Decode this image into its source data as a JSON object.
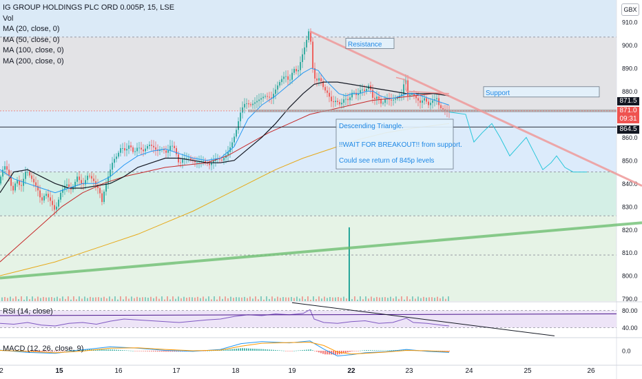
{
  "header": {
    "title": "IG GROUP HOLDINGS PLC ORD 0.005P, 15, LSE",
    "currency": "GBX",
    "indicators": [
      "Vol",
      "MA (20, close, 0)",
      "MA (50, close, 0)",
      "MA (100, close, 0)",
      "MA (200, close, 0)"
    ]
  },
  "rsi_panel": {
    "label": "RSI (14, close)",
    "ticks": [
      "80.00",
      "40.00"
    ]
  },
  "macd_panel": {
    "label": "MACD (12, 26, close, 9)",
    "ticks": [
      "0.0"
    ]
  },
  "price_tags": {
    "upper": "871.5",
    "current": "871.0",
    "countdown": "09:31",
    "lower": "864.5"
  },
  "colors": {
    "up": "#26a69a",
    "down": "#ef5350",
    "ma20": "#2196f3",
    "ma50": "#131722",
    "ma100": "#c62828",
    "ma200": "#e6a817",
    "trendline": "#ef9a9a",
    "long_trend": "#66bb6a",
    "forecast": "#26c6da",
    "annotation_text": "#1e88e5"
  },
  "chart_data": {
    "type": "candlestick",
    "symbol": "IG GROUP HOLDINGS PLC ORD 0.005P",
    "interval": "15",
    "exchange": "LSE",
    "ylim": [
      789,
      913
    ],
    "y_ticks": [
      790,
      800,
      810,
      820,
      830,
      840,
      850,
      860,
      870,
      880,
      890,
      900,
      910
    ],
    "x_ticks": [
      "2",
      "15",
      "16",
      "17",
      "18",
      "19",
      "22",
      "23",
      "24",
      "25",
      "26"
    ],
    "price_path": [
      [
        0,
        840
      ],
      [
        8,
        848
      ],
      [
        14,
        845
      ],
      [
        20,
        836
      ],
      [
        26,
        842
      ],
      [
        32,
        838
      ],
      [
        40,
        846
      ],
      [
        48,
        842
      ],
      [
        56,
        838
      ],
      [
        62,
        832
      ],
      [
        68,
        836
      ],
      [
        76,
        832
      ],
      [
        82,
        828
      ],
      [
        90,
        836
      ],
      [
        98,
        840
      ],
      [
        106,
        837
      ],
      [
        114,
        843
      ],
      [
        122,
        839
      ],
      [
        130,
        844
      ],
      [
        138,
        841
      ],
      [
        146,
        837
      ],
      [
        150,
        832
      ],
      [
        154,
        838
      ],
      [
        160,
        844
      ],
      [
        166,
        850
      ],
      [
        172,
        852
      ],
      [
        178,
        856
      ],
      [
        184,
        854
      ],
      [
        190,
        857
      ],
      [
        196,
        853
      ],
      [
        202,
        856
      ],
      [
        210,
        854
      ],
      [
        218,
        857
      ],
      [
        224,
        856
      ],
      [
        230,
        854
      ],
      [
        238,
        855
      ],
      [
        244,
        853
      ],
      [
        250,
        857
      ],
      [
        256,
        855
      ],
      [
        262,
        848
      ],
      [
        268,
        851
      ],
      [
        276,
        851
      ],
      [
        286,
        849
      ],
      [
        296,
        850
      ],
      [
        306,
        848
      ],
      [
        316,
        851
      ],
      [
        324,
        850
      ],
      [
        332,
        853
      ],
      [
        338,
        857
      ],
      [
        344,
        862
      ],
      [
        348,
        867
      ],
      [
        352,
        872
      ],
      [
        358,
        875
      ],
      [
        366,
        874
      ],
      [
        376,
        876
      ],
      [
        386,
        878
      ],
      [
        396,
        877
      ],
      [
        404,
        882
      ],
      [
        410,
        885
      ],
      [
        416,
        887
      ],
      [
        422,
        884
      ],
      [
        428,
        890
      ],
      [
        434,
        888
      ],
      [
        440,
        895
      ],
      [
        446,
        901
      ],
      [
        450,
        906
      ],
      [
        454,
        900
      ],
      [
        456,
        890
      ],
      [
        460,
        884
      ],
      [
        466,
        886
      ],
      [
        472,
        881
      ],
      [
        478,
        879
      ],
      [
        484,
        875
      ],
      [
        490,
        876
      ],
      [
        496,
        874
      ],
      [
        502,
        877
      ],
      [
        508,
        876
      ],
      [
        514,
        880
      ],
      [
        520,
        878
      ],
      [
        526,
        881
      ],
      [
        532,
        880
      ],
      [
        538,
        883
      ],
      [
        544,
        876
      ],
      [
        550,
        878
      ],
      [
        556,
        874
      ],
      [
        562,
        877
      ],
      [
        570,
        876
      ],
      [
        578,
        877
      ],
      [
        586,
        879
      ],
      [
        590,
        887
      ],
      [
        594,
        878
      ],
      [
        600,
        879
      ],
      [
        606,
        877
      ],
      [
        612,
        875
      ],
      [
        618,
        877
      ],
      [
        624,
        874
      ],
      [
        630,
        876
      ],
      [
        636,
        877
      ],
      [
        640,
        873
      ],
      [
        646,
        872
      ],
      [
        652,
        871
      ]
    ],
    "ma20": [
      [
        0,
        846
      ],
      [
        20,
        842
      ],
      [
        40,
        840
      ],
      [
        60,
        838
      ],
      [
        80,
        836
      ],
      [
        100,
        838
      ],
      [
        120,
        840
      ],
      [
        140,
        840
      ],
      [
        160,
        843
      ],
      [
        180,
        848
      ],
      [
        200,
        852
      ],
      [
        220,
        854
      ],
      [
        240,
        855
      ],
      [
        260,
        853
      ],
      [
        280,
        851
      ],
      [
        300,
        850
      ],
      [
        320,
        851
      ],
      [
        340,
        856
      ],
      [
        350,
        862
      ],
      [
        360,
        868
      ],
      [
        380,
        874
      ],
      [
        400,
        878
      ],
      [
        420,
        883
      ],
      [
        440,
        888
      ],
      [
        452,
        890
      ],
      [
        462,
        889
      ],
      [
        472,
        885
      ],
      [
        482,
        882
      ],
      [
        492,
        879
      ],
      [
        502,
        878
      ],
      [
        512,
        879
      ],
      [
        522,
        879
      ],
      [
        532,
        880
      ],
      [
        542,
        880
      ],
      [
        552,
        878
      ],
      [
        562,
        877
      ],
      [
        572,
        877
      ],
      [
        582,
        878
      ],
      [
        592,
        879
      ],
      [
        602,
        879
      ],
      [
        612,
        878
      ],
      [
        622,
        877
      ],
      [
        632,
        876
      ],
      [
        642,
        875
      ],
      [
        652,
        874
      ]
    ],
    "ma50": [
      [
        0,
        836
      ],
      [
        20,
        845
      ],
      [
        40,
        846
      ],
      [
        60,
        843
      ],
      [
        80,
        840
      ],
      [
        100,
        838
      ],
      [
        120,
        838
      ],
      [
        140,
        839
      ],
      [
        160,
        840
      ],
      [
        180,
        843
      ],
      [
        200,
        847
      ],
      [
        220,
        849
      ],
      [
        240,
        851
      ],
      [
        260,
        851
      ],
      [
        280,
        850
      ],
      [
        300,
        849
      ],
      [
        320,
        849
      ],
      [
        340,
        850
      ],
      [
        360,
        855
      ],
      [
        380,
        860
      ],
      [
        400,
        866
      ],
      [
        420,
        873
      ],
      [
        440,
        879
      ],
      [
        456,
        883
      ],
      [
        470,
        884
      ],
      [
        490,
        884
      ],
      [
        510,
        883
      ],
      [
        530,
        882
      ],
      [
        550,
        881
      ],
      [
        570,
        880
      ],
      [
        590,
        879
      ],
      [
        610,
        879
      ],
      [
        630,
        879
      ],
      [
        652,
        878
      ]
    ],
    "ma100": [
      [
        0,
        806
      ],
      [
        30,
        814
      ],
      [
        60,
        822
      ],
      [
        90,
        830
      ],
      [
        120,
        836
      ],
      [
        150,
        840
      ],
      [
        180,
        843
      ],
      [
        210,
        845
      ],
      [
        240,
        847
      ],
      [
        270,
        848
      ],
      [
        300,
        849
      ],
      [
        330,
        852
      ],
      [
        360,
        857
      ],
      [
        390,
        862
      ],
      [
        420,
        866
      ],
      [
        450,
        870
      ],
      [
        480,
        872
      ],
      [
        510,
        874
      ],
      [
        540,
        876
      ],
      [
        570,
        877
      ],
      [
        600,
        878
      ],
      [
        630,
        879
      ],
      [
        652,
        879
      ]
    ],
    "ma200": [
      [
        0,
        800
      ],
      [
        40,
        803
      ],
      [
        80,
        806
      ],
      [
        120,
        810
      ],
      [
        160,
        814
      ],
      [
        200,
        818
      ],
      [
        240,
        823
      ],
      [
        280,
        828
      ],
      [
        320,
        834
      ],
      [
        360,
        840
      ],
      [
        400,
        846
      ],
      [
        440,
        851
      ],
      [
        480,
        855
      ],
      [
        520,
        859
      ],
      [
        560,
        862
      ],
      [
        600,
        864
      ],
      [
        652,
        866
      ]
    ],
    "forecast_path": [
      [
        652,
        871
      ],
      [
        676,
        870
      ],
      [
        688,
        858
      ],
      [
        700,
        862
      ],
      [
        714,
        866
      ],
      [
        726,
        860
      ],
      [
        740,
        852
      ],
      [
        752,
        856
      ],
      [
        764,
        860
      ],
      [
        776,
        853
      ],
      [
        788,
        846
      ],
      [
        800,
        849
      ],
      [
        808,
        852
      ],
      [
        820,
        847
      ],
      [
        832,
        845
      ],
      [
        852,
        845
      ]
    ],
    "drawings": {
      "resistance_line": {
        "from": [
          450,
          906
        ],
        "to": [
          932,
          839
        ]
      },
      "long_trendline": {
        "from": [
          0,
          799
        ],
        "to": [
          932,
          823
        ]
      },
      "support_level": 871.5,
      "resistance_level": 903.5,
      "target_level": 845
    },
    "annotations": [
      {
        "text": "Resistance",
        "x": 505,
        "y": 900
      },
      {
        "text": "Support",
        "x": 705,
        "y": 879
      },
      {
        "text": "Descending Triangle.",
        "x": 492,
        "y": 864
      },
      {
        "text": "!!WAIT FOR BREAKOUT!! from support.",
        "x": 492,
        "y": 856
      },
      {
        "text": "Could see return of 845p levels",
        "x": 492,
        "y": 849
      }
    ],
    "volume_spike": {
      "x": 506,
      "label": ""
    },
    "rsi": {
      "ylim": [
        20,
        100
      ],
      "levels": [
        80,
        40
      ],
      "values": [
        [
          0,
          50
        ],
        [
          20,
          48
        ],
        [
          40,
          52
        ],
        [
          60,
          46
        ],
        [
          80,
          44
        ],
        [
          100,
          50
        ],
        [
          120,
          52
        ],
        [
          140,
          48
        ],
        [
          160,
          55
        ],
        [
          180,
          60
        ],
        [
          200,
          58
        ],
        [
          220,
          56
        ],
        [
          240,
          54
        ],
        [
          260,
          52
        ],
        [
          280,
          55
        ],
        [
          300,
          58
        ],
        [
          320,
          60
        ],
        [
          340,
          66
        ],
        [
          360,
          70
        ],
        [
          380,
          68
        ],
        [
          400,
          72
        ],
        [
          420,
          70
        ],
        [
          440,
          73
        ],
        [
          450,
          82
        ],
        [
          456,
          60
        ],
        [
          470,
          52
        ],
        [
          490,
          50
        ],
        [
          510,
          54
        ],
        [
          530,
          56
        ],
        [
          550,
          50
        ],
        [
          570,
          52
        ],
        [
          590,
          62
        ],
        [
          600,
          52
        ],
        [
          620,
          50
        ],
        [
          640,
          46
        ],
        [
          652,
          44
        ]
      ]
    },
    "macd": {
      "ylim": [
        -4,
        4
      ],
      "macd": [
        [
          0,
          0.2
        ],
        [
          40,
          -0.5
        ],
        [
          80,
          -0.8
        ],
        [
          120,
          0.3
        ],
        [
          160,
          1.2
        ],
        [
          200,
          0.8
        ],
        [
          240,
          0.1
        ],
        [
          280,
          -0.2
        ],
        [
          320,
          0.4
        ],
        [
          350,
          2.2
        ],
        [
          380,
          2.8
        ],
        [
          420,
          2.4
        ],
        [
          450,
          3.0
        ],
        [
          470,
          0.5
        ],
        [
          490,
          -1.6
        ],
        [
          510,
          -1.2
        ],
        [
          530,
          -0.6
        ],
        [
          560,
          -0.3
        ],
        [
          590,
          0.4
        ],
        [
          620,
          -0.2
        ],
        [
          652,
          -0.5
        ]
      ],
      "signal": [
        [
          0,
          0.1
        ],
        [
          40,
          -0.2
        ],
        [
          80,
          -0.6
        ],
        [
          120,
          -0.1
        ],
        [
          160,
          0.8
        ],
        [
          200,
          0.9
        ],
        [
          240,
          0.4
        ],
        [
          280,
          0.0
        ],
        [
          320,
          0.2
        ],
        [
          350,
          1.4
        ],
        [
          380,
          2.3
        ],
        [
          420,
          2.5
        ],
        [
          450,
          2.6
        ],
        [
          470,
          1.6
        ],
        [
          490,
          -0.4
        ],
        [
          510,
          -1.0
        ],
        [
          530,
          -0.8
        ],
        [
          560,
          -0.4
        ],
        [
          590,
          0.1
        ],
        [
          620,
          0.0
        ],
        [
          652,
          -0.3
        ]
      ]
    }
  }
}
